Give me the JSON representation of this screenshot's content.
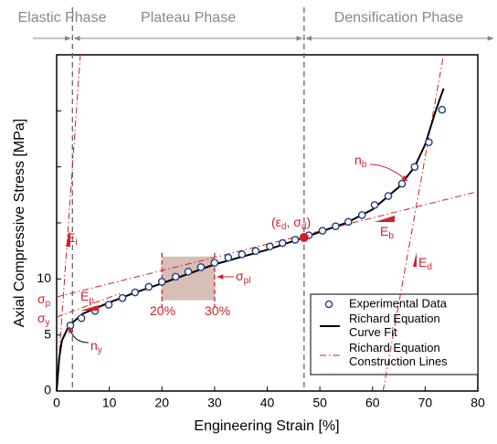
{
  "chart_data": {
    "type": "scatter",
    "xlabel": "Engineering Strain [%]",
    "ylabel": "Axial Compressive Stress [MPa]",
    "xlim": [
      0,
      80
    ],
    "xticks": [
      0,
      10,
      20,
      30,
      40,
      50,
      60,
      70,
      80
    ],
    "ylim": [
      0,
      30
    ],
    "yticks": [
      0,
      5,
      10
    ],
    "yminor_ticks": [
      15,
      20,
      25
    ],
    "legend": "lower right",
    "phases": [
      "Elastic Phase",
      "Plateau Phase",
      "Densification Phase"
    ],
    "phase_boundaries": [
      3,
      47
    ],
    "series": [
      {
        "name": "Experimental Data",
        "type": "scatter",
        "color": "#1f3b8c",
        "x": [
          2.6,
          4.7,
          7.3,
          9.9,
          12.5,
          14.9,
          17.5,
          20,
          22.6,
          25,
          27.4,
          30,
          32.6,
          35.2,
          37.8,
          40.5,
          42.9,
          45.3,
          47.9,
          50.5,
          53,
          55.4,
          58,
          60.4,
          63,
          65.6,
          68,
          70.7,
          73.2
        ],
        "values": [
          5.85,
          6.5,
          7.15,
          7.7,
          8.3,
          8.8,
          9.3,
          9.75,
          10.2,
          10.65,
          11.05,
          11.45,
          11.9,
          12.2,
          12.5,
          12.9,
          13.2,
          13.5,
          13.9,
          14.3,
          14.7,
          15.1,
          15.7,
          16.6,
          17.4,
          18.5,
          20,
          22.2,
          25.1
        ]
      },
      {
        "name": "Richard Equation Curve Fit",
        "type": "line",
        "color": "#000000",
        "x": [
          0,
          0.5,
          1,
          2,
          3,
          5,
          10,
          15,
          20,
          30,
          40,
          47,
          55,
          60,
          65,
          68,
          70,
          72,
          73.5
        ],
        "values": [
          0,
          3,
          4.5,
          5.5,
          6.1,
          6.9,
          7.9,
          8.8,
          9.6,
          11.3,
          12.6,
          13.7,
          15,
          16.2,
          18.2,
          20,
          22,
          25,
          27
        ]
      },
      {
        "name": "Richard Equation Construction Lines",
        "type": "construction",
        "color": "#d0202a",
        "lines": [
          {
            "x": [
              0,
              4.5
            ],
            "values": [
              0,
              30
            ]
          },
          {
            "x": [
              0,
              80
            ],
            "values": [
              8.4,
              17.8
            ]
          },
          {
            "x": [
              0,
              12
            ],
            "values": [
              6.6,
              8.7
            ]
          },
          {
            "x": [
              62,
              73.5
            ],
            "values": [
              0,
              30
            ]
          }
        ]
      }
    ],
    "densification_point": {
      "x": 47,
      "y": 13.7
    },
    "plateau_region": {
      "x": [
        20,
        30
      ],
      "y": [
        8.1,
        12
      ]
    },
    "annotations": [
      {
        "parts": [
          {
            "text": "n"
          },
          {
            "sub": "b"
          }
        ]
      },
      {
        "parts": [
          {
            "text": "E"
          },
          {
            "sub": "i"
          }
        ]
      },
      {
        "parts": [
          {
            "text": "E"
          },
          {
            "sub": "p"
          }
        ]
      },
      {
        "parts": [
          {
            "text": "E"
          },
          {
            "sub": "b"
          }
        ]
      },
      {
        "parts": [
          {
            "text": "E"
          },
          {
            "sub": "d"
          }
        ]
      },
      {
        "parts": [
          {
            "text": "σ"
          },
          {
            "sub": "p"
          }
        ]
      },
      {
        "parts": [
          {
            "text": "σ"
          },
          {
            "sub": "y"
          }
        ]
      },
      {
        "parts": [
          {
            "text": "σ"
          },
          {
            "sub": "pl"
          }
        ]
      },
      {
        "parts": [
          {
            "text": "(ε"
          },
          {
            "sub": "d"
          },
          {
            "text": ", σ"
          },
          {
            "sub": "d"
          },
          {
            "text": ")"
          }
        ]
      },
      {
        "parts": [
          {
            "text": "20%"
          }
        ]
      },
      {
        "parts": [
          {
            "text": "30%"
          }
        ]
      },
      {
        "parts": [
          {
            "text": "n"
          },
          {
            "sub": "y"
          }
        ]
      }
    ]
  }
}
